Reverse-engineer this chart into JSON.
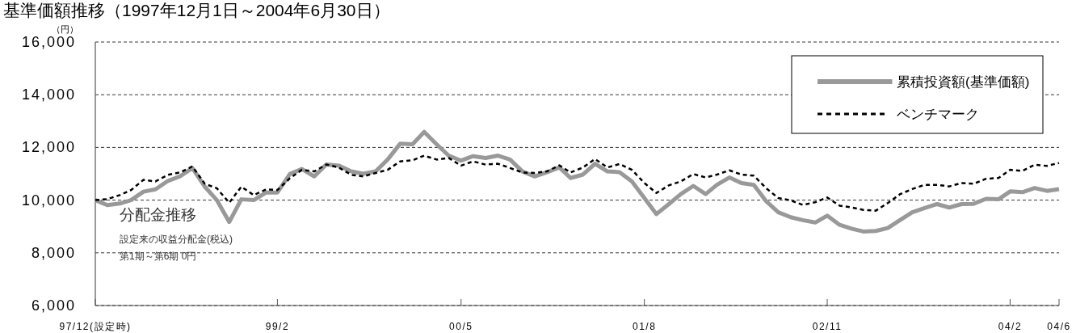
{
  "chart_data": {
    "type": "line",
    "title": "基準価額推移（1997年12月1日～2004年6月30日）",
    "ylabel": "（円）",
    "x": [
      "1997-12-01",
      "1997-12-31",
      "1998-01-31",
      "1998-02-28",
      "1998-03-31",
      "1998-04-30",
      "1998-05-31",
      "1998-06-30",
      "1998-07-31",
      "1998-08-31",
      "1998-09-30",
      "1998-10-31",
      "1998-11-30",
      "1998-12-31",
      "1999-01-31",
      "1999-02-28",
      "1999-03-31",
      "1999-04-30",
      "1999-05-31",
      "1999-06-30",
      "1999-07-31",
      "1999-08-31",
      "1999-09-30",
      "1999-10-31",
      "1999-11-30",
      "1999-12-31",
      "2000-01-31",
      "2000-02-29",
      "2000-03-31",
      "2000-04-30",
      "2000-05-31",
      "2000-06-30",
      "2000-07-31",
      "2000-08-31",
      "2000-09-30",
      "2000-10-31",
      "2000-11-30",
      "2000-12-31",
      "2001-01-31",
      "2001-02-28",
      "2001-03-31",
      "2001-04-30",
      "2001-05-31",
      "2001-06-30",
      "2001-07-31",
      "2001-08-31",
      "2001-09-30",
      "2001-10-31",
      "2001-11-30",
      "2001-12-31",
      "2002-01-31",
      "2002-02-28",
      "2002-03-31",
      "2002-04-30",
      "2002-05-31",
      "2002-06-30",
      "2002-07-31",
      "2002-08-31",
      "2002-09-30",
      "2002-10-31",
      "2002-11-30",
      "2002-12-31",
      "2003-01-31",
      "2003-02-28",
      "2003-03-31",
      "2003-04-30",
      "2003-05-31",
      "2003-06-30",
      "2003-07-31",
      "2003-08-31",
      "2003-09-30",
      "2003-10-31",
      "2003-11-30",
      "2003-12-31",
      "2004-01-31",
      "2004-02-29",
      "2004-03-31",
      "2004-04-30",
      "2004-05-31",
      "2004-06-30"
    ],
    "series": [
      {
        "name": "累積投資額(基準価額)",
        "color": "#999999",
        "line_style": "solid",
        "values": [
          10000,
          9810,
          9870,
          10000,
          10320,
          10410,
          10730,
          10900,
          11220,
          10510,
          10000,
          9170,
          10030,
          10000,
          10290,
          10290,
          10990,
          11180,
          10900,
          11350,
          11310,
          11090,
          11000,
          11090,
          11540,
          12140,
          12120,
          12590,
          12120,
          11690,
          11500,
          11670,
          11600,
          11690,
          11540,
          11090,
          10900,
          11060,
          11240,
          10840,
          10970,
          11380,
          11090,
          11060,
          10710,
          10080,
          9470,
          9850,
          10230,
          10540,
          10230,
          10580,
          10860,
          10650,
          10580,
          9970,
          9540,
          9350,
          9240,
          9150,
          9410,
          9060,
          8910,
          8810,
          8830,
          8940,
          9250,
          9540,
          9700,
          9850,
          9720,
          9850,
          9860,
          10050,
          10030,
          10330,
          10300,
          10460,
          10350,
          10420
        ]
      },
      {
        "name": "ベンチマーク",
        "color": "#000000",
        "line_style": "dashed",
        "values": [
          10000,
          10040,
          10190,
          10380,
          10770,
          10710,
          10960,
          11050,
          11280,
          10620,
          10450,
          9900,
          10510,
          10190,
          10410,
          10380,
          10830,
          11150,
          11090,
          11350,
          11240,
          10960,
          10900,
          11030,
          11150,
          11470,
          11510,
          11690,
          11540,
          11600,
          11310,
          11470,
          11350,
          11380,
          11220,
          11050,
          11030,
          11090,
          11320,
          11050,
          11240,
          11560,
          11240,
          11370,
          11150,
          10650,
          10270,
          10560,
          10710,
          10990,
          10860,
          10970,
          11130,
          10970,
          10930,
          10460,
          10080,
          9990,
          9820,
          9920,
          10100,
          9790,
          9720,
          9630,
          9600,
          9890,
          10230,
          10420,
          10580,
          10580,
          10520,
          10650,
          10620,
          10810,
          10840,
          11150,
          11110,
          11340,
          11300,
          11410
        ]
      }
    ],
    "xlim": [
      "1997-12-01",
      "2004-06-30"
    ],
    "xticks": [
      {
        "value": "1997-12-01",
        "label": "97/12(設定時)"
      },
      {
        "value": "1999-02-28",
        "label": "99/2"
      },
      {
        "value": "2000-05-31",
        "label": "00/5"
      },
      {
        "value": "2001-08-31",
        "label": "01/8"
      },
      {
        "value": "2002-11-30",
        "label": "02/11"
      },
      {
        "value": "2004-02-29",
        "label": "04/2"
      },
      {
        "value": "2004-06-30",
        "label": "04/6"
      }
    ],
    "ylim": [
      6000,
      16000
    ],
    "yticks": [
      {
        "value": 6000,
        "label": "6,000"
      },
      {
        "value": 8000,
        "label": "8,000"
      },
      {
        "value": 10000,
        "label": "10,000"
      },
      {
        "value": 12000,
        "label": "12,000"
      },
      {
        "value": 14000,
        "label": "14,000"
      },
      {
        "value": 16000,
        "label": "16,000"
      }
    ],
    "grid": "y",
    "legend": "top right",
    "annotations": [
      "分配金推移",
      "設定来の収益分配金(税込)",
      "第1期～第6期 0円"
    ]
  }
}
